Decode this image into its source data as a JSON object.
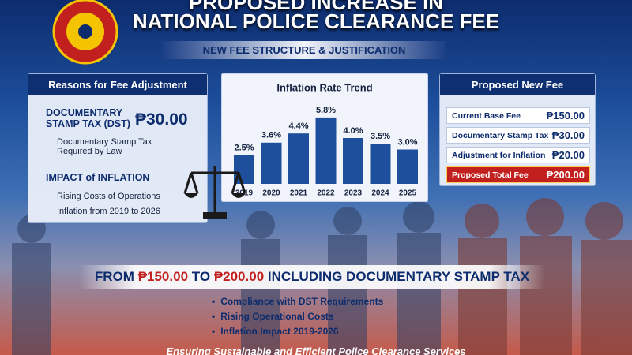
{
  "header": {
    "title_line1": "PROPOSED INCREASE IN",
    "title_line2": "NATIONAL POLICE CLEARANCE FEE",
    "subtitle": "NEW FEE STRUCTURE & JUSTIFICATION"
  },
  "reasons": {
    "heading": "Reasons for Fee Adjustment",
    "dst_title": "DOCUMENTARY STAMP TAX (DST)",
    "dst_amount": "₱30.00",
    "dst_note": "Documentary Stamp Tax Required by Law",
    "inflation_title": "IMPACT of INFLATION",
    "inflation_items": [
      "Rising Costs of Operations",
      "Inflation from 2019 to 2026"
    ]
  },
  "chart_data": {
    "type": "bar",
    "title": "Inflation Rate Trend",
    "categories": [
      "2019",
      "2020",
      "2021",
      "2022",
      "2023",
      "2024",
      "2025"
    ],
    "values": [
      2.5,
      3.6,
      4.4,
      5.8,
      4.0,
      3.5,
      3.0
    ],
    "value_labels": [
      "2.5%",
      "3.6%",
      "4.4%",
      "5.8%",
      "4.0%",
      "3.5%",
      "3.0%"
    ],
    "color": "#1d4f9c"
  },
  "fee_table": {
    "heading": "Proposed New Fee",
    "rows": [
      [
        "Current Base Fee",
        "₱150.00"
      ],
      [
        "Documentary Stamp Tax",
        "₱30.00"
      ],
      [
        "Adjustment for Inflation",
        "₱20.00"
      ],
      [
        "Proposed Total Fee",
        "₱200.00"
      ]
    ]
  },
  "banner": {
    "from": "FROM",
    "old_fee": "₱150.00",
    "to": "TO",
    "new_fee": "₱200.00",
    "rest": "INCLUDING DOCUMENTARY STAMP TAX"
  },
  "bullets": [
    "Compliance with DST Requirements",
    "Rising Operational Costs",
    "Inflation Impact 2019-2026"
  ],
  "footer": "Ensuring Sustainable and Efficient Police Clearance Services"
}
